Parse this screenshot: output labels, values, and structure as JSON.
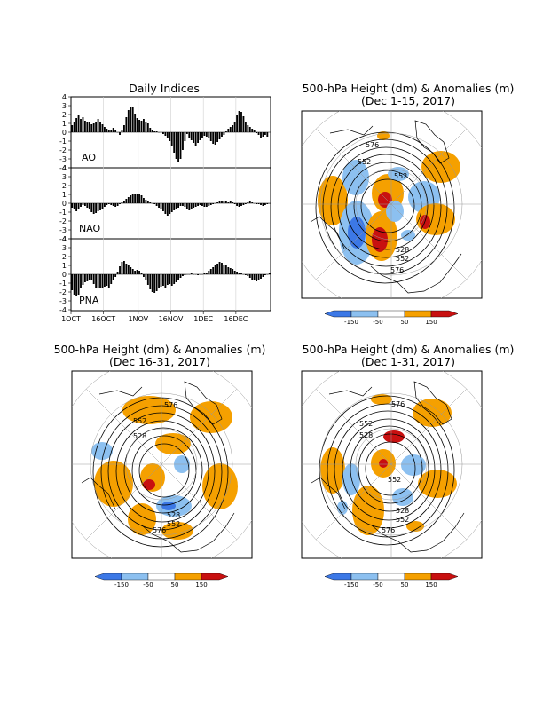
{
  "indices_panel": {
    "title": "Daily Indices",
    "x_ticks": [
      "1OCT",
      "16OCT",
      "1NOV",
      "16NOV",
      "1DEC",
      "16DEC"
    ],
    "y_ticks": [
      "4",
      "3",
      "2",
      "1",
      "0",
      "-1",
      "-2",
      "-3",
      "-4"
    ]
  },
  "maps": [
    {
      "title_line1": "500-hPa Height (dm) & Anomalies (m)",
      "title_line2": "(Dec 1-15, 2017)",
      "contour_labels": [
        "576",
        "552",
        "552",
        "528",
        "552",
        "576"
      ]
    },
    {
      "title_line1": "500-hPa Height (dm) & Anomalies (m)",
      "title_line2": "(Dec 16-31, 2017)",
      "contour_labels": [
        "576",
        "552",
        "528",
        "528",
        "552",
        "576"
      ]
    },
    {
      "title_line1": "500-hPa Height (dm) & Anomalies (m)",
      "title_line2": "(Dec 1-31, 2017)",
      "contour_labels": [
        "576",
        "552",
        "528",
        "552",
        "528",
        "552",
        "576"
      ]
    }
  ],
  "colorbar": {
    "labels": [
      "-150",
      "-50",
      "50",
      "150"
    ],
    "colors": [
      "#3c78e6",
      "#8cc0f0",
      "#ffffff",
      "#f5a000",
      "#c81010"
    ]
  },
  "chart_data": [
    {
      "type": "bar",
      "name": "AO",
      "xlabel": "",
      "ylabel": "",
      "ylim": [
        -4,
        4
      ],
      "values": [
        0.8,
        1.2,
        1.6,
        1.9,
        1.5,
        1.7,
        1.3,
        1.2,
        1.1,
        0.9,
        1.0,
        1.2,
        1.5,
        1.1,
        0.9,
        0.6,
        0.4,
        0.3,
        0.3,
        0.5,
        0.2,
        0.0,
        -0.3,
        0.2,
        0.8,
        1.7,
        2.5,
        2.9,
        2.8,
        2.1,
        1.6,
        1.4,
        1.3,
        1.5,
        1.2,
        1.0,
        0.5,
        0.3,
        0.1,
        0.1,
        0.0,
        0.0,
        -0.2,
        -0.4,
        -0.6,
        -1.0,
        -1.5,
        -2.3,
        -3.0,
        -3.4,
        -3.0,
        -2.0,
        -1.0,
        -0.2,
        -0.6,
        -0.9,
        -1.2,
        -1.5,
        -1.2,
        -0.9,
        -0.6,
        -0.4,
        -0.5,
        -0.7,
        -1.0,
        -1.3,
        -1.4,
        -1.1,
        -0.8,
        -0.5,
        -0.3,
        0.1,
        0.4,
        0.6,
        0.8,
        1.2,
        1.9,
        2.4,
        2.3,
        1.8,
        1.2,
        0.8,
        0.6,
        0.4,
        0.2,
        -0.1,
        -0.3,
        -0.6,
        -0.5,
        -0.3,
        -0.5
      ]
    },
    {
      "type": "bar",
      "name": "NAO",
      "xlabel": "",
      "ylabel": "",
      "ylim": [
        -4,
        4
      ],
      "values": [
        -0.5,
        -0.7,
        -0.9,
        -0.6,
        -0.4,
        -0.2,
        -0.3,
        -0.5,
        -0.7,
        -1.0,
        -1.2,
        -1.1,
        -0.9,
        -0.8,
        -0.6,
        -0.4,
        -0.2,
        -0.1,
        -0.2,
        -0.3,
        -0.4,
        -0.3,
        -0.1,
        0.1,
        0.3,
        0.5,
        0.7,
        0.9,
        1.0,
        1.1,
        1.1,
        1.0,
        0.9,
        0.6,
        0.4,
        0.2,
        0.1,
        0.0,
        -0.1,
        -0.3,
        -0.5,
        -0.7,
        -0.9,
        -1.2,
        -1.4,
        -1.2,
        -1.0,
        -0.8,
        -0.7,
        -0.5,
        -0.3,
        -0.3,
        -0.4,
        -0.6,
        -0.8,
        -0.7,
        -0.5,
        -0.4,
        -0.3,
        -0.2,
        -0.3,
        -0.4,
        -0.4,
        -0.3,
        -0.2,
        -0.1,
        0.0,
        0.1,
        0.2,
        0.3,
        0.3,
        0.2,
        0.1,
        0.2,
        0.1,
        -0.1,
        -0.3,
        -0.4,
        -0.3,
        -0.2,
        -0.1,
        0.1,
        0.2,
        0.1,
        0.0,
        -0.1,
        -0.1,
        -0.2,
        -0.3,
        -0.2,
        -0.1,
        0.0
      ]
    },
    {
      "type": "bar",
      "name": "PNA",
      "xlabel": "",
      "ylabel": "",
      "ylim": [
        -4,
        4
      ],
      "values": [
        -1.8,
        -2.3,
        -2.4,
        -2.3,
        -1.6,
        -1.2,
        -0.9,
        -0.8,
        -0.7,
        -0.7,
        -1.1,
        -1.5,
        -1.6,
        -1.6,
        -1.5,
        -1.4,
        -1.3,
        -1.5,
        -1.1,
        -0.7,
        -0.3,
        0.3,
        0.9,
        1.4,
        1.5,
        1.2,
        1.0,
        0.8,
        0.6,
        0.4,
        0.5,
        0.4,
        0.2,
        -0.3,
        -0.7,
        -1.2,
        -1.7,
        -2.0,
        -2.1,
        -1.9,
        -1.6,
        -1.4,
        -1.3,
        -1.5,
        -1.2,
        -1.1,
        -1.3,
        -1.1,
        -0.9,
        -0.6,
        -0.4,
        -0.2,
        -0.1,
        0.0,
        0.0,
        0.1,
        0.0,
        0.0,
        -0.1,
        0.0,
        0.0,
        0.1,
        0.2,
        0.4,
        0.6,
        0.8,
        1.0,
        1.2,
        1.4,
        1.3,
        1.1,
        1.0,
        0.8,
        0.7,
        0.6,
        0.4,
        0.3,
        0.2,
        0.1,
        0.0,
        -0.1,
        -0.2,
        -0.4,
        -0.6,
        -0.7,
        -0.8,
        -0.7,
        -0.5,
        -0.3,
        -0.1,
        0.0,
        0.1
      ]
    }
  ]
}
